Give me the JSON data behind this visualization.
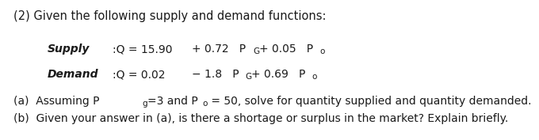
{
  "bg_color": "#ffffff",
  "text_color": "#1a1a1a",
  "title": "(2) Given the following supply and demand functions:",
  "supply_label": "Supply",
  "demand_label": "Demand",
  "line_a": "(a)  Assuming P",
  "line_a_sub": "g",
  "line_a_mid": "=3 and P",
  "line_a_sub2": "o",
  "line_a_end": " = 50, solve for quantity supplied and quantity demanded.",
  "line_b": "(b)  Given your answer in (a), is there a shortage or surplus in the market? Explain briefly.",
  "fs_title": 10.5,
  "fs_body": 10.0,
  "fs_sub": 7.5,
  "fs_label": 10.0
}
